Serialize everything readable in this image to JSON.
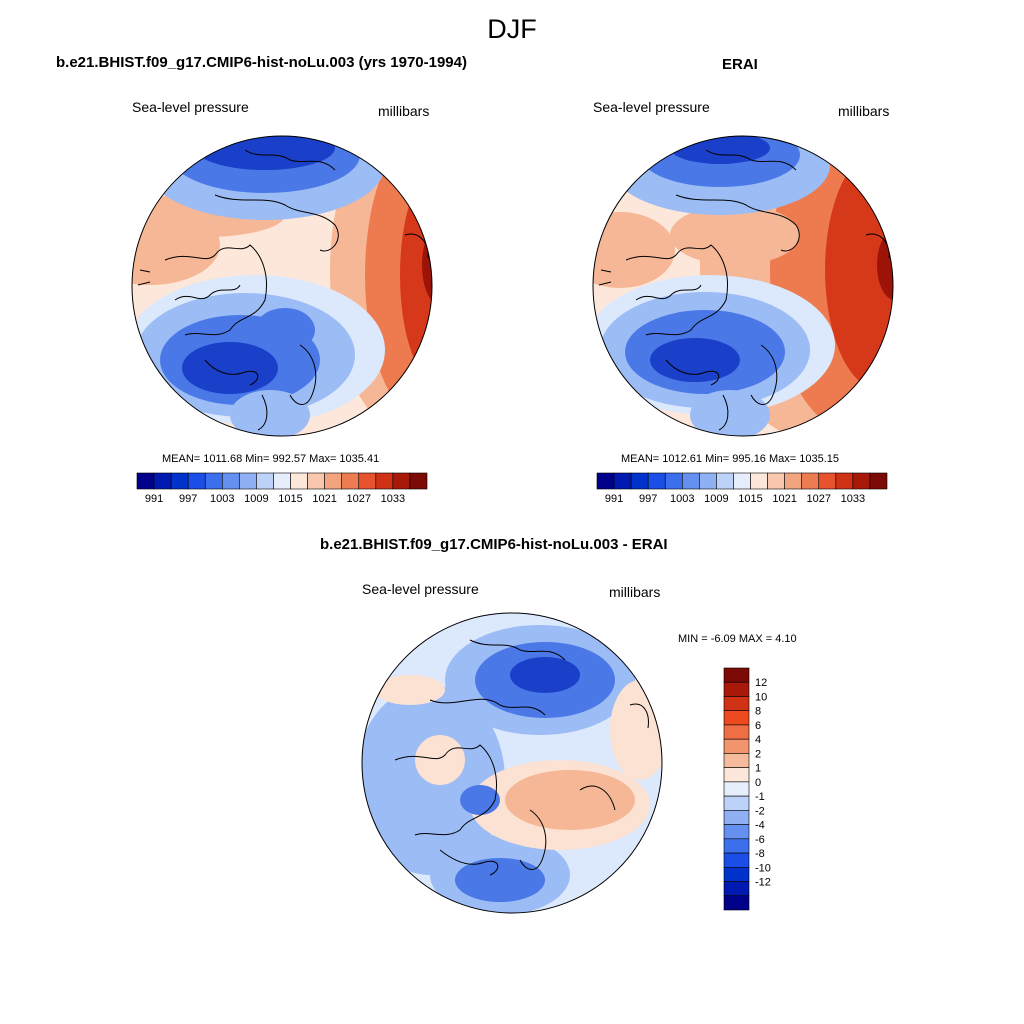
{
  "main_title": "DJF",
  "panels": [
    {
      "title": "b.e21.BHIST.f09_g17.CMIP6-hist-noLu.003 (yrs 1970-1994)",
      "left_label": "Sea-level pressure",
      "right_label": "millibars",
      "stats": "MEAN= 1011.68  Min= 992.57  Max= 1035.41"
    },
    {
      "title": "ERAI",
      "left_label": "Sea-level pressure",
      "right_label": "millibars",
      "stats": "MEAN= 1012.61  Min= 995.16  Max= 1035.15"
    },
    {
      "title": "b.e21.BHIST.f09_g17.CMIP6-hist-noLu.003 - ERAI",
      "left_label": "Sea-level pressure",
      "right_label": "millibars",
      "stats": "MIN =  -6.09 MAX =   4.10"
    }
  ],
  "horizontal_colorbar": {
    "tick_labels": [
      "991",
      "997",
      "1003",
      "1009",
      "1015",
      "1021",
      "1027",
      "1033"
    ],
    "colors": [
      "#00008b",
      "#0019b0",
      "#0033cc",
      "#1a4ee6",
      "#3b6fec",
      "#6590f0",
      "#8fb1f4",
      "#bdd2f8",
      "#e6eefc",
      "#fde7da",
      "#f8c7ad",
      "#f2a47e",
      "#ee7c52",
      "#e6532d",
      "#cf3215",
      "#a8190a",
      "#7c0a05"
    ]
  },
  "vertical_colorbar": {
    "tick_labels": [
      "12",
      "10",
      "8",
      "6",
      "4",
      "2",
      "1",
      "0",
      "-1",
      "-2",
      "-4",
      "-6",
      "-8",
      "-10",
      "-12"
    ],
    "colors": [
      "#7c0a05",
      "#a8190a",
      "#cf3215",
      "#ee4a20",
      "#f06e45",
      "#f2946c",
      "#f6bb9c",
      "#fde7da",
      "#e6eefc",
      "#bdd2f8",
      "#8fb1f4",
      "#6590f0",
      "#3b6fec",
      "#1a4ee6",
      "#0033cc",
      "#0019b0",
      "#00008b"
    ]
  },
  "map_colors": {
    "deep_blue": "#1a3fc9",
    "mid_blue": "#4a78e6",
    "light_blue": "#9cbcf5",
    "pale_blue": "#dce8fb",
    "pale_orange": "#fbe2d3",
    "light_orange": "#f6b796",
    "mid_orange": "#ee7a50",
    "red": "#d6381a",
    "dark_red": "#9c1408"
  }
}
